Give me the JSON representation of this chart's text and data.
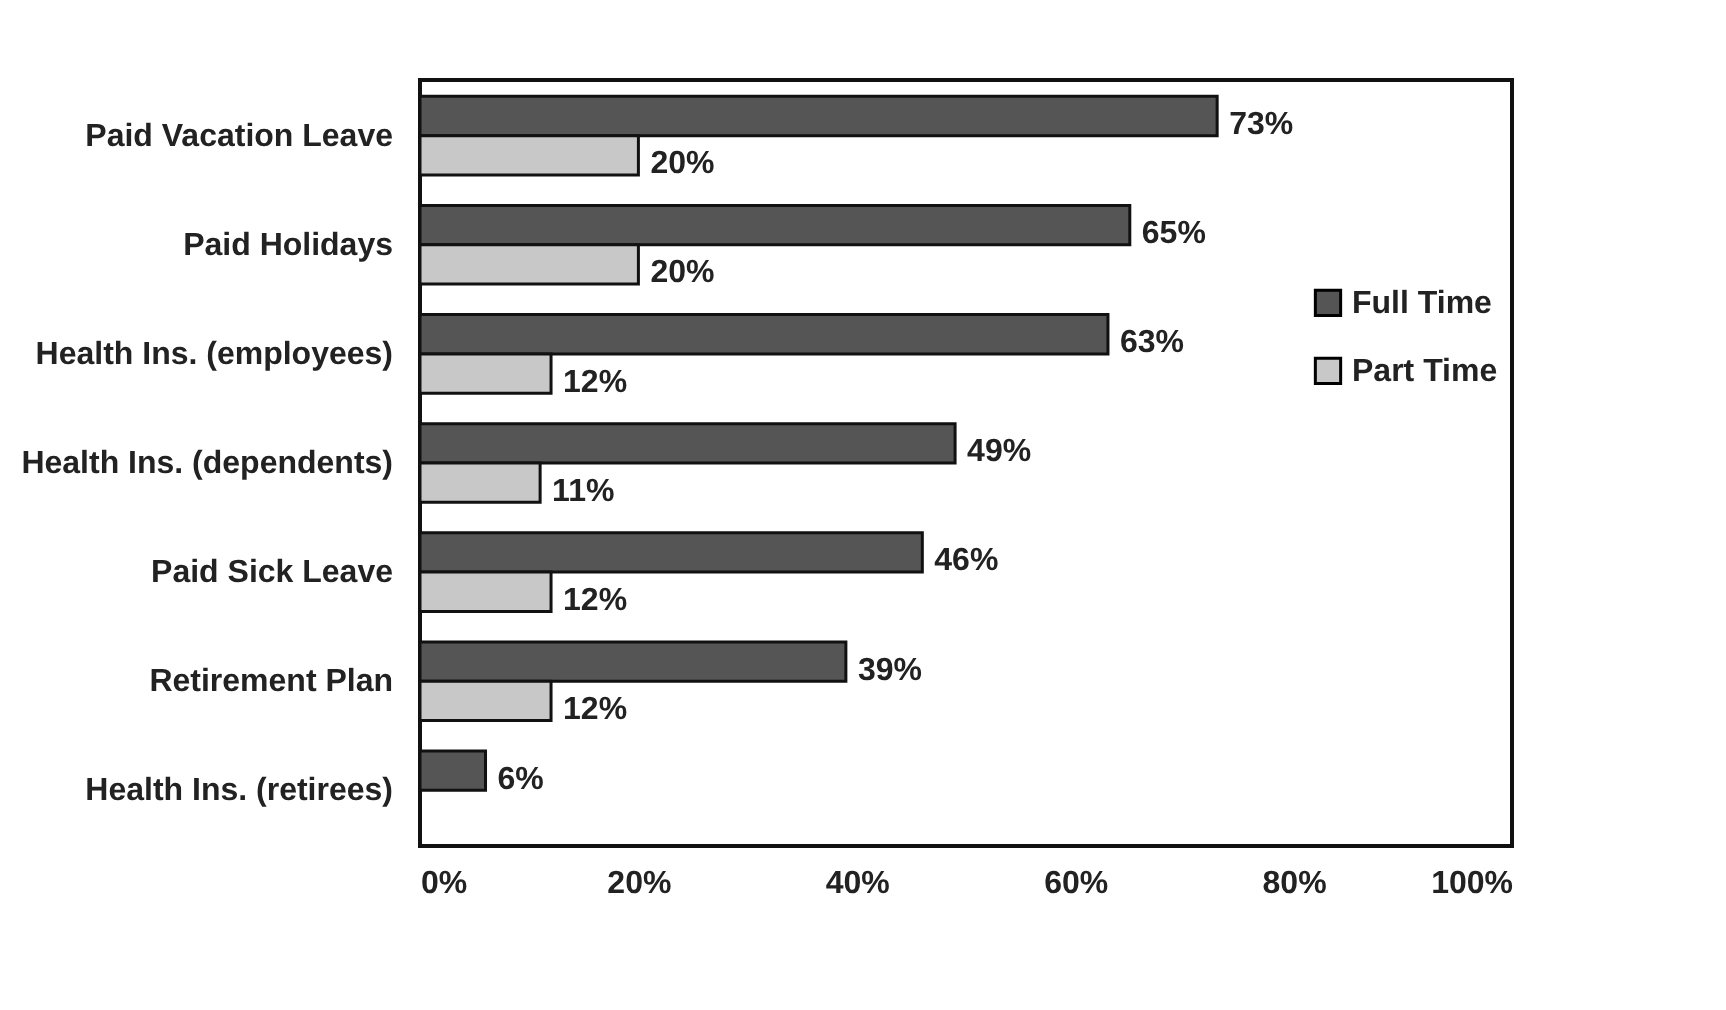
{
  "chart_data": {
    "type": "bar",
    "orientation": "horizontal",
    "categories": [
      "Paid Vacation Leave",
      "Paid Holidays",
      "Health Ins. (employees)",
      "Health Ins. (dependents)",
      "Paid Sick Leave",
      "Retirement Plan",
      "Health Ins. (retirees)"
    ],
    "series": [
      {
        "name": "Full Time",
        "color": "#555555",
        "values": [
          73,
          65,
          63,
          49,
          46,
          39,
          6
        ],
        "value_labels": [
          "73%",
          "65%",
          "63%",
          "49%",
          "46%",
          "39%",
          "6%"
        ]
      },
      {
        "name": "Part Time",
        "color": "#c8c8c8",
        "values": [
          20,
          20,
          12,
          11,
          12,
          12,
          null
        ],
        "value_labels": [
          "20%",
          "20%",
          "12%",
          "11%",
          "12%",
          "12%",
          null
        ]
      }
    ],
    "xlim": [
      0,
      100
    ],
    "xticks": [
      {
        "value": 0,
        "label": "0%"
      },
      {
        "value": 20,
        "label": "20%"
      },
      {
        "value": 40,
        "label": "40%"
      },
      {
        "value": 60,
        "label": "60%"
      },
      {
        "value": 80,
        "label": "80%"
      },
      {
        "value": 100,
        "label": "100%"
      }
    ],
    "grid": false,
    "legend": "right"
  }
}
